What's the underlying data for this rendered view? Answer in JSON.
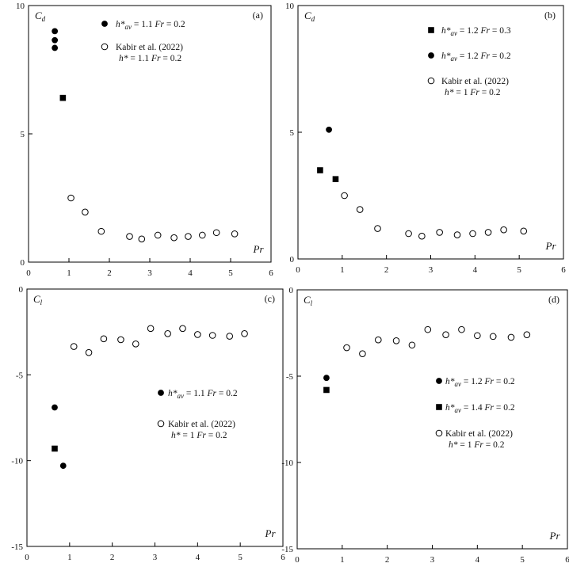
{
  "chart_data": [
    {
      "panel": "(a)",
      "type": "scatter",
      "ylabel": "C_d",
      "xlabel": "Pr",
      "xlim": [
        0,
        6
      ],
      "ylim": [
        0,
        10
      ],
      "xticks": [
        0,
        1,
        2,
        3,
        4,
        5,
        6
      ],
      "yticks": [
        0,
        5,
        10
      ],
      "legend_placement": "top-right",
      "series": [
        {
          "marker": "filled-circle",
          "legend": [
            "h*_av = 1.1 Fr = 0.2"
          ],
          "points": [
            [
              0.65,
              9.0
            ],
            [
              0.65,
              8.65
            ],
            [
              0.65,
              8.35
            ]
          ]
        },
        {
          "marker": "filled-square",
          "points": [
            [
              0.85,
              6.4
            ]
          ]
        },
        {
          "marker": "open-circle",
          "legend": [
            "Kabir et al. (2022)",
            "h* = 1.1 Fr = 0.2"
          ],
          "points": [
            [
              1.05,
              2.5
            ],
            [
              1.4,
              1.95
            ],
            [
              1.8,
              1.2
            ],
            [
              2.5,
              1.0
            ],
            [
              2.8,
              0.9
            ],
            [
              3.2,
              1.05
            ],
            [
              3.6,
              0.95
            ],
            [
              3.95,
              1.0
            ],
            [
              4.3,
              1.05
            ],
            [
              4.65,
              1.15
            ],
            [
              5.1,
              1.1
            ]
          ]
        }
      ]
    },
    {
      "panel": "(b)",
      "type": "scatter",
      "ylabel": "C_d",
      "xlabel": "Pr",
      "xlim": [
        0,
        6
      ],
      "ylim": [
        0,
        10
      ],
      "xticks": [
        0,
        1,
        2,
        3,
        4,
        5,
        6
      ],
      "yticks": [
        0,
        5,
        10
      ],
      "legend_placement": "top-right",
      "series": [
        {
          "marker": "filled-square",
          "legend": [
            "h*_av = 1.2 Fr = 0.3"
          ],
          "points": [
            [
              0.5,
              3.5
            ],
            [
              0.85,
              3.15
            ]
          ]
        },
        {
          "marker": "filled-circle",
          "legend": [
            "h*_av = 1.2 Fr = 0.2"
          ],
          "points": [
            [
              0.7,
              5.1
            ]
          ]
        },
        {
          "marker": "open-circle",
          "legend": [
            "Kabir et al. (2022)",
            "h* = 1 Fr = 0.2"
          ],
          "points": [
            [
              1.05,
              2.5
            ],
            [
              1.4,
              1.95
            ],
            [
              1.8,
              1.2
            ],
            [
              2.5,
              1.0
            ],
            [
              2.8,
              0.9
            ],
            [
              3.2,
              1.05
            ],
            [
              3.6,
              0.95
            ],
            [
              3.95,
              1.0
            ],
            [
              4.3,
              1.05
            ],
            [
              4.65,
              1.15
            ],
            [
              5.1,
              1.1
            ]
          ]
        }
      ]
    },
    {
      "panel": "(c)",
      "type": "scatter",
      "ylabel": "C_l",
      "xlabel": "Pr",
      "xlim": [
        0,
        6
      ],
      "ylim": [
        -15,
        0
      ],
      "xticks": [
        0,
        1,
        2,
        3,
        4,
        5,
        6
      ],
      "yticks": [
        0,
        -5,
        -10,
        -15
      ],
      "legend_placement": "right",
      "series": [
        {
          "marker": "filled-circle",
          "legend": [
            "h*_av = 1.1 Fr = 0.2"
          ],
          "points": [
            [
              0.65,
              -6.9
            ],
            [
              0.85,
              -10.3
            ]
          ]
        },
        {
          "marker": "filled-square",
          "points": [
            [
              0.65,
              -9.3
            ]
          ]
        },
        {
          "marker": "open-circle",
          "legend": [
            "Kabir et al. (2022)",
            "h* = 1 Fr = 0.2"
          ],
          "points": [
            [
              1.1,
              -3.35
            ],
            [
              1.45,
              -3.7
            ],
            [
              1.8,
              -2.9
            ],
            [
              2.2,
              -2.95
            ],
            [
              2.55,
              -3.2
            ],
            [
              2.9,
              -2.3
            ],
            [
              3.3,
              -2.6
            ],
            [
              3.65,
              -2.3
            ],
            [
              4.0,
              -2.65
            ],
            [
              4.35,
              -2.7
            ],
            [
              4.75,
              -2.75
            ],
            [
              5.1,
              -2.6
            ]
          ]
        }
      ]
    },
    {
      "panel": "(d)",
      "type": "scatter",
      "ylabel": "C_l",
      "xlabel": "Pr",
      "xlim": [
        0,
        6
      ],
      "ylim": [
        -15,
        0
      ],
      "xticks": [
        0,
        1,
        2,
        3,
        4,
        5,
        6
      ],
      "yticks": [
        0,
        -5,
        -10,
        -15
      ],
      "legend_placement": "right",
      "series": [
        {
          "marker": "filled-circle",
          "legend": [
            "h*_av = 1.2 Fr = 0.2"
          ],
          "points": [
            [
              0.65,
              -5.1
            ]
          ]
        },
        {
          "marker": "filled-square",
          "legend": [
            "h*_av = 1.4 Fr = 0.2"
          ],
          "points": [
            [
              0.65,
              -5.8
            ]
          ]
        },
        {
          "marker": "open-circle",
          "legend": [
            "Kabir et al. (2022)",
            "h* = 1 Fr = 0.2"
          ],
          "points": [
            [
              1.1,
              -3.35
            ],
            [
              1.45,
              -3.7
            ],
            [
              1.8,
              -2.9
            ],
            [
              2.2,
              -2.95
            ],
            [
              2.55,
              -3.2
            ],
            [
              2.9,
              -2.3
            ],
            [
              3.3,
              -2.6
            ],
            [
              3.65,
              -2.3
            ],
            [
              4.0,
              -2.65
            ],
            [
              4.35,
              -2.7
            ],
            [
              4.75,
              -2.75
            ],
            [
              5.1,
              -2.6
            ]
          ]
        }
      ]
    }
  ]
}
